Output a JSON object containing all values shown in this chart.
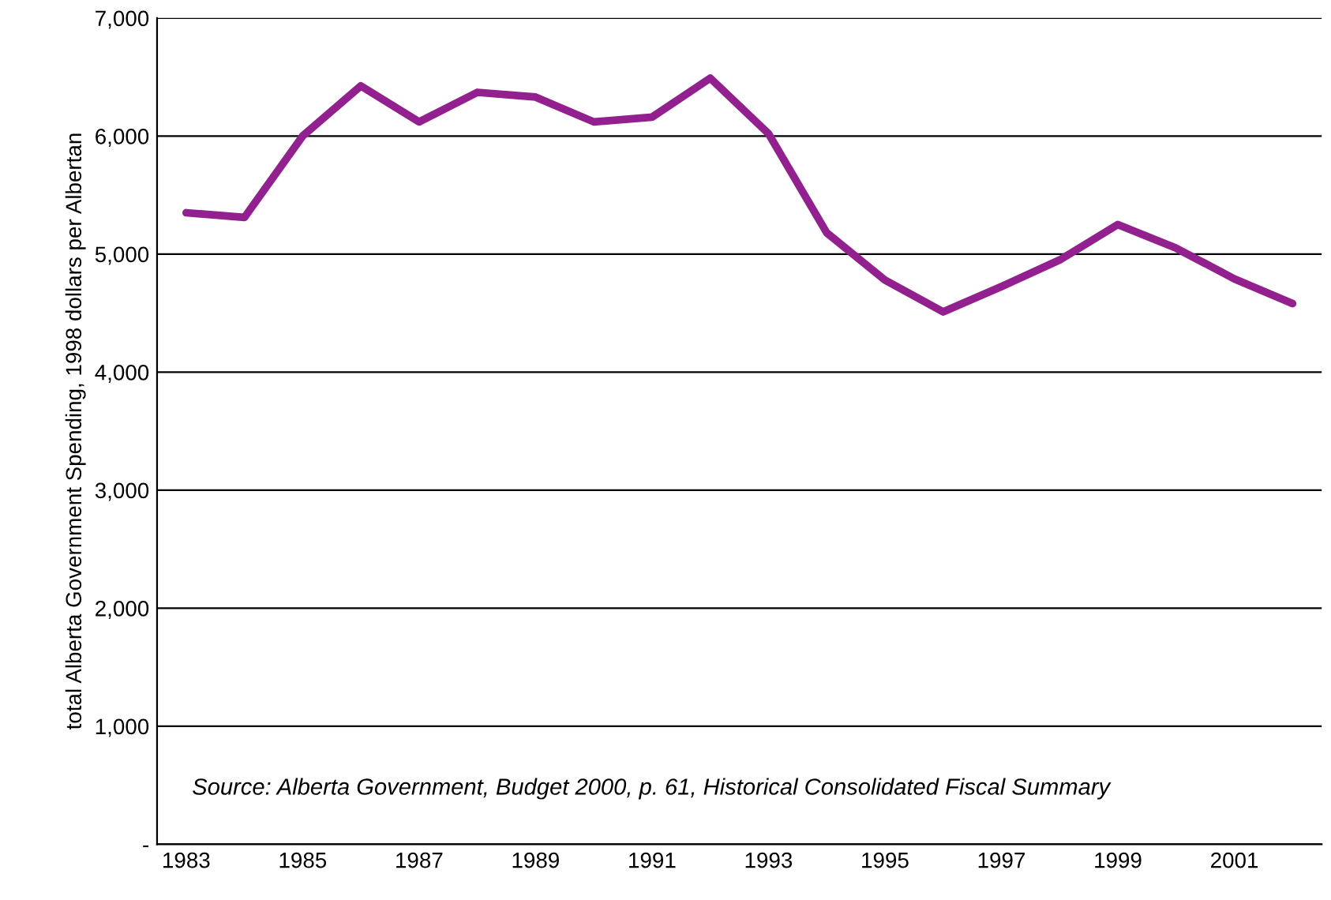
{
  "chart_data": {
    "type": "line",
    "ylabel": "total Alberta Government Spending, 1998 dollars per Albertan",
    "categories": [
      "1983",
      null,
      "1985",
      null,
      "1987",
      null,
      "1989",
      null,
      "1991",
      null,
      "1993",
      null,
      "1995",
      null,
      "1997",
      null,
      "1999",
      null,
      "2001",
      null
    ],
    "series": [
      {
        "color": "#93208f",
        "values": [
          5350,
          5310,
          6000,
          6425,
          6120,
          6370,
          6330,
          6120,
          6160,
          6490,
          6020,
          5180,
          4780,
          4510,
          4725,
          4950,
          5250,
          5050,
          4790,
          4580
        ]
      }
    ],
    "ylim": [
      0,
      7000
    ],
    "yticks": [
      {
        "value": 0,
        "label": "-"
      },
      {
        "value": 1000,
        "label": "1,000"
      },
      {
        "value": 2000,
        "label": "2,000"
      },
      {
        "value": 3000,
        "label": "3,000"
      },
      {
        "value": 4000,
        "label": "4,000"
      },
      {
        "value": 5000,
        "label": "5,000"
      },
      {
        "value": 6000,
        "label": "6,000"
      },
      {
        "value": 7000,
        "label": "7,000"
      }
    ],
    "grid": "y",
    "marker": "none",
    "line_style": "solid",
    "annotations": [
      "Source: Alberta Government, Budget 2000, p. 61, Historical Consolidated Fiscal Summary"
    ]
  }
}
